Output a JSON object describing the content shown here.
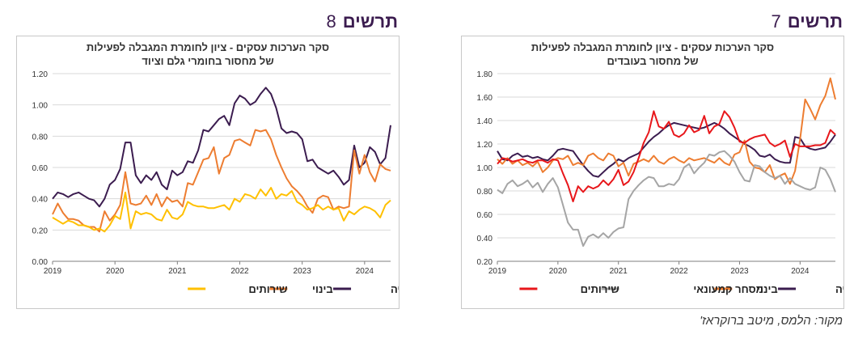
{
  "source_note": "מקור: הלמס, מיטב ברוקראז'",
  "charts": [
    {
      "figure_word": "תרשים",
      "figure_number": "7",
      "title_line1": "סקר הערכות עסקים - ציון לחומרת המגבלה לפעילות",
      "title_line2": "של מחסור בעובדים"
    },
    {
      "figure_word": "תרשים",
      "figure_number": "8",
      "title_line1": "סקר הערכות עסקים - ציון לחומרת המגבלה לפעילות",
      "title_line2": "של מחסור בחומרי גלם וציוד"
    }
  ],
  "chart_data": [
    {
      "type": "line",
      "title": "סקר הערכות עסקים - ציון לחומרת המגבלה לפעילות של מחסור בעובדים",
      "x_start": "2019-01",
      "x_tick_labels": [
        "2019",
        "2020",
        "2021",
        "2022",
        "2023",
        "2024"
      ],
      "ylim": [
        0.2,
        1.8
      ],
      "y_tick_labels": [
        "0.20",
        "0.40",
        "0.60",
        "0.80",
        "1.00",
        "1.20",
        "1.40",
        "1.60",
        "1.80"
      ],
      "grid": true,
      "legend_position": "bottom",
      "series": [
        {
          "name": "תעשייה",
          "color": "#3b1c4f",
          "values": [
            1.14,
            1.07,
            1.06,
            1.1,
            1.12,
            1.09,
            1.1,
            1.08,
            1.09,
            1.07,
            1.06,
            1.1,
            1.15,
            1.16,
            1.15,
            1.14,
            1.08,
            1.02,
            0.97,
            0.93,
            0.92,
            0.96,
            1.0,
            1.03,
            1.07,
            1.05,
            1.08,
            1.1,
            1.12,
            1.17,
            1.22,
            1.26,
            1.29,
            1.33,
            1.36,
            1.38,
            1.37,
            1.36,
            1.35,
            1.34,
            1.33,
            1.34,
            1.36,
            1.38,
            1.36,
            1.33,
            1.29,
            1.26,
            1.23,
            1.2,
            1.18,
            1.15,
            1.1,
            1.09,
            1.11,
            1.07,
            1.05,
            1.04,
            1.04,
            1.26,
            1.25,
            1.18,
            1.16,
            1.15,
            1.16,
            1.17,
            1.22,
            1.28
          ]
        },
        {
          "name": "בינוי",
          "color": "#ed7d31",
          "values": [
            1.07,
            1.03,
            1.08,
            1.03,
            1.06,
            1.02,
            1.04,
            1.01,
            1.05,
            0.96,
            1.0,
            1.06,
            1.08,
            1.07,
            1.1,
            1.02,
            1.04,
            1.02,
            1.1,
            1.12,
            1.08,
            1.06,
            1.12,
            1.1,
            1.01,
            1.04,
            0.93,
            1.03,
            1.05,
            1.07,
            1.05,
            1.1,
            1.05,
            1.03,
            1.07,
            1.09,
            1.06,
            1.04,
            1.08,
            1.06,
            1.07,
            1.08,
            1.06,
            1.04,
            1.08,
            1.04,
            1.02,
            1.11,
            1.13,
            1.23,
            1.05,
            1.0,
            0.99,
            0.96,
            1.02,
            0.9,
            0.93,
            0.95,
            0.86,
            0.97,
            1.24,
            1.58,
            1.5,
            1.41,
            1.53,
            1.61,
            1.76,
            1.58
          ]
        },
        {
          "name": "מסחר קמעונאי",
          "color": "#a5a5a5",
          "values": [
            0.81,
            0.78,
            0.86,
            0.89,
            0.84,
            0.86,
            0.89,
            0.83,
            0.87,
            0.79,
            0.86,
            0.91,
            0.83,
            0.68,
            0.53,
            0.47,
            0.47,
            0.33,
            0.41,
            0.43,
            0.4,
            0.44,
            0.4,
            0.45,
            0.48,
            0.49,
            0.73,
            0.8,
            0.85,
            0.89,
            0.92,
            0.91,
            0.84,
            0.84,
            0.86,
            0.85,
            0.9,
            1.0,
            1.03,
            0.95,
            1.0,
            1.04,
            1.11,
            1.1,
            1.13,
            1.14,
            1.1,
            1.05,
            0.96,
            0.89,
            0.88,
            1.02,
            1.01,
            0.96,
            0.93,
            0.91,
            0.93,
            0.86,
            0.91,
            0.86,
            0.84,
            0.82,
            0.81,
            0.83,
            1.0,
            0.98,
            0.9,
            0.79
          ]
        },
        {
          "name": "שירותים",
          "color": "#e8171b",
          "values": [
            1.03,
            1.08,
            1.07,
            1.05,
            1.06,
            1.07,
            1.05,
            1.04,
            1.06,
            1.06,
            1.04,
            1.07,
            1.06,
            0.95,
            0.85,
            0.71,
            0.84,
            0.79,
            0.84,
            0.82,
            0.84,
            0.89,
            0.85,
            0.9,
            0.98,
            0.85,
            0.88,
            0.96,
            1.08,
            1.21,
            1.3,
            1.48,
            1.35,
            1.33,
            1.39,
            1.28,
            1.26,
            1.29,
            1.36,
            1.3,
            1.32,
            1.44,
            1.29,
            1.35,
            1.37,
            1.48,
            1.43,
            1.34,
            1.22,
            1.21,
            1.24,
            1.26,
            1.27,
            1.28,
            1.21,
            1.18,
            1.2,
            1.23,
            1.09,
            1.2,
            1.18,
            1.18,
            1.18,
            1.19,
            1.19,
            1.21,
            1.32,
            1.28
          ]
        }
      ]
    },
    {
      "type": "line",
      "title": "סקר הערכות עסקים - ציון לחומרת המגבלה לפעילות של מחסור בחומרי גלם וציוד",
      "x_start": "2019-01",
      "x_tick_labels": [
        "2019",
        "2020",
        "2021",
        "2022",
        "2023",
        "2024"
      ],
      "ylim": [
        0,
        1.2
      ],
      "y_tick_labels": [
        "0.00",
        "0.20",
        "0.40",
        "0.60",
        "0.80",
        "1.00",
        "1.20"
      ],
      "grid": true,
      "legend_position": "bottom",
      "series": [
        {
          "name": "תעשייה",
          "color": "#3b1c4f",
          "values": [
            0.4,
            0.44,
            0.43,
            0.41,
            0.43,
            0.44,
            0.42,
            0.4,
            0.39,
            0.35,
            0.4,
            0.49,
            0.52,
            0.59,
            0.76,
            0.76,
            0.55,
            0.5,
            0.55,
            0.52,
            0.57,
            0.49,
            0.46,
            0.58,
            0.55,
            0.57,
            0.64,
            0.63,
            0.71,
            0.84,
            0.83,
            0.87,
            0.91,
            0.93,
            0.87,
            1.01,
            1.06,
            1.04,
            1.0,
            1.02,
            1.07,
            1.11,
            1.07,
            0.98,
            0.85,
            0.82,
            0.83,
            0.82,
            0.78,
            0.64,
            0.65,
            0.6,
            0.58,
            0.56,
            0.58,
            0.54,
            0.49,
            0.52,
            0.74,
            0.6,
            0.63,
            0.73,
            0.7,
            0.62,
            0.66,
            0.87
          ]
        },
        {
          "name": "בינוי",
          "color": "#ed7d31",
          "values": [
            0.3,
            0.37,
            0.31,
            0.27,
            0.27,
            0.26,
            0.23,
            0.22,
            0.22,
            0.19,
            0.32,
            0.26,
            0.3,
            0.36,
            0.57,
            0.37,
            0.36,
            0.37,
            0.42,
            0.36,
            0.43,
            0.35,
            0.41,
            0.38,
            0.39,
            0.35,
            0.5,
            0.49,
            0.57,
            0.65,
            0.66,
            0.73,
            0.56,
            0.66,
            0.68,
            0.77,
            0.78,
            0.76,
            0.74,
            0.84,
            0.83,
            0.84,
            0.78,
            0.68,
            0.6,
            0.53,
            0.48,
            0.45,
            0.41,
            0.35,
            0.31,
            0.4,
            0.42,
            0.41,
            0.33,
            0.35,
            0.34,
            0.35,
            0.71,
            0.56,
            0.68,
            0.57,
            0.51,
            0.62,
            0.59,
            0.58
          ]
        },
        {
          "name": "שירותים",
          "color": "#ffc000",
          "values": [
            0.28,
            0.26,
            0.24,
            0.26,
            0.25,
            0.23,
            0.23,
            0.22,
            0.2,
            0.21,
            0.19,
            0.23,
            0.29,
            0.27,
            0.44,
            0.21,
            0.32,
            0.3,
            0.31,
            0.3,
            0.27,
            0.26,
            0.33,
            0.28,
            0.27,
            0.3,
            0.38,
            0.36,
            0.35,
            0.35,
            0.34,
            0.34,
            0.35,
            0.36,
            0.33,
            0.4,
            0.38,
            0.43,
            0.42,
            0.4,
            0.46,
            0.42,
            0.47,
            0.4,
            0.43,
            0.42,
            0.45,
            0.38,
            0.36,
            0.33,
            0.34,
            0.36,
            0.33,
            0.35,
            0.33,
            0.34,
            0.26,
            0.32,
            0.3,
            0.33,
            0.35,
            0.34,
            0.32,
            0.28,
            0.36,
            0.39
          ]
        }
      ]
    }
  ]
}
